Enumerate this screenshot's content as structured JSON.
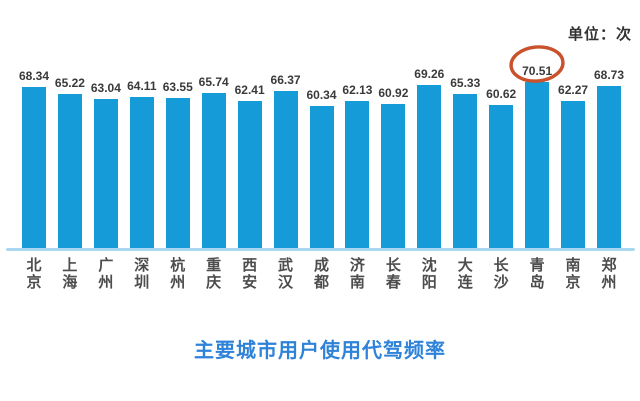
{
  "chart_data": {
    "type": "bar",
    "title": "主要城市用户使用代驾频率",
    "unit_label": "单位：次",
    "categories": [
      "北京",
      "上海",
      "广州",
      "深圳",
      "杭州",
      "重庆",
      "西安",
      "武汉",
      "成都",
      "济南",
      "长春",
      "沈阳",
      "大连",
      "长沙",
      "青岛",
      "南京",
      "郑州"
    ],
    "values": [
      68.34,
      65.22,
      63.04,
      64.11,
      63.55,
      65.74,
      62.41,
      66.37,
      60.34,
      62.13,
      60.92,
      69.26,
      65.33,
      60.62,
      70.51,
      62.27,
      68.73
    ],
    "data_labels_visible": true,
    "highlighted_category": "青岛",
    "highlighted_value": 70.51,
    "highlight_style": "hand-drawn-circle",
    "ylim": [
      0,
      75
    ],
    "axis_visible": "x-only",
    "grid": false,
    "legend": "none",
    "colors": {
      "bar": "#149bd8",
      "axis_line": "#a9d8f0",
      "value_label": "#3a3a3a",
      "city_label": "#4d4d4d",
      "title": "#2e83d9",
      "unit_label": "#333333",
      "highlight_circle": "#c9512c"
    }
  }
}
